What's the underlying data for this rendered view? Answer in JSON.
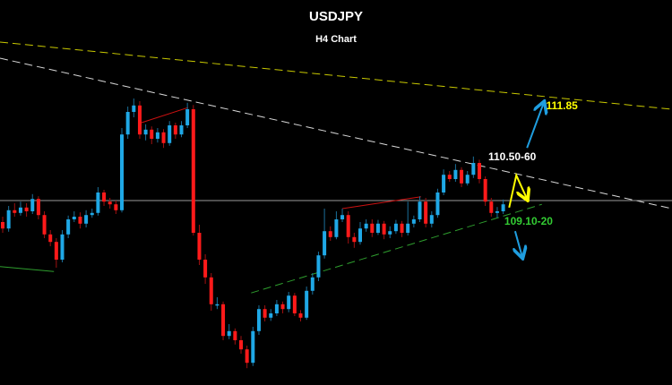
{
  "chart_data": {
    "type": "candlestick",
    "title": "USDJPY",
    "subtitle": "H4 Chart",
    "grid": false,
    "colors": {
      "background": "#000000",
      "bull": "#1fa8e6",
      "bear": "#ff1a1a",
      "resistance_upper": "#c8c800",
      "resistance": "#d8d8d8",
      "support": "#2e9e2e",
      "level": "#9a9a9a",
      "pattern": "#cc1111",
      "arrow_up": "#1f9ee0",
      "arrow_zigzag": "#ffff00",
      "arrow_down": "#1f9ee0"
    },
    "candles": [
      [
        109.6,
        109.7,
        109.4,
        109.48
      ],
      [
        109.48,
        109.9,
        109.42,
        109.82
      ],
      [
        109.82,
        109.95,
        109.7,
        109.77
      ],
      [
        109.77,
        109.98,
        109.72,
        109.87
      ],
      [
        109.87,
        109.95,
        109.7,
        109.8
      ],
      [
        109.8,
        110.12,
        109.75,
        110.03
      ],
      [
        110.03,
        110.08,
        109.65,
        109.73
      ],
      [
        109.73,
        109.8,
        109.3,
        109.37
      ],
      [
        109.37,
        109.45,
        109.15,
        109.23
      ],
      [
        109.23,
        109.3,
        108.75,
        108.9
      ],
      [
        108.9,
        109.45,
        108.85,
        109.37
      ],
      [
        109.37,
        109.72,
        109.3,
        109.65
      ],
      [
        109.65,
        109.8,
        109.6,
        109.7
      ],
      [
        109.7,
        109.78,
        109.48,
        109.57
      ],
      [
        109.57,
        109.82,
        109.5,
        109.73
      ],
      [
        109.73,
        109.85,
        109.68,
        109.77
      ],
      [
        109.77,
        110.25,
        109.72,
        110.15
      ],
      [
        110.15,
        110.2,
        109.9,
        109.98
      ],
      [
        109.98,
        110.05,
        109.85,
        109.93
      ],
      [
        109.93,
        110.0,
        109.75,
        109.82
      ],
      [
        109.82,
        111.35,
        109.78,
        111.23
      ],
      [
        111.23,
        111.75,
        111.15,
        111.65
      ],
      [
        111.65,
        111.9,
        111.55,
        111.77
      ],
      [
        111.77,
        111.85,
        111.15,
        111.23
      ],
      [
        111.23,
        111.42,
        111.12,
        111.32
      ],
      [
        111.32,
        111.38,
        111.05,
        111.15
      ],
      [
        111.15,
        111.35,
        111.08,
        111.27
      ],
      [
        111.27,
        111.33,
        110.98,
        111.07
      ],
      [
        111.07,
        111.48,
        111.02,
        111.4
      ],
      [
        111.4,
        111.45,
        111.15,
        111.23
      ],
      [
        111.23,
        111.48,
        111.18,
        111.4
      ],
      [
        111.4,
        111.82,
        111.35,
        111.7
      ],
      [
        111.7,
        111.78,
        109.35,
        109.4
      ],
      [
        109.4,
        109.55,
        108.8,
        108.9
      ],
      [
        108.9,
        109.0,
        108.45,
        108.57
      ],
      [
        108.57,
        108.65,
        107.95,
        108.07
      ],
      [
        108.07,
        108.2,
        107.98,
        108.07
      ],
      [
        108.07,
        108.12,
        107.4,
        107.48
      ],
      [
        107.48,
        107.7,
        107.42,
        107.57
      ],
      [
        107.57,
        107.62,
        107.32,
        107.4
      ],
      [
        107.4,
        107.48,
        107.15,
        107.23
      ],
      [
        107.23,
        107.3,
        106.88,
        106.98
      ],
      [
        106.98,
        107.65,
        106.92,
        107.57
      ],
      [
        107.57,
        108.05,
        107.5,
        107.98
      ],
      [
        107.98,
        108.05,
        107.75,
        107.82
      ],
      [
        107.82,
        107.98,
        107.76,
        107.9
      ],
      [
        107.9,
        108.15,
        107.85,
        108.07
      ],
      [
        108.07,
        108.12,
        107.9,
        107.98
      ],
      [
        107.98,
        108.3,
        107.92,
        108.23
      ],
      [
        108.23,
        108.28,
        107.85,
        107.9
      ],
      [
        107.9,
        107.96,
        107.75,
        107.82
      ],
      [
        107.82,
        108.4,
        107.78,
        108.32
      ],
      [
        108.32,
        108.65,
        108.25,
        108.57
      ],
      [
        108.57,
        109.05,
        108.5,
        108.98
      ],
      [
        108.98,
        109.85,
        108.92,
        109.43
      ],
      [
        109.43,
        109.52,
        109.25,
        109.32
      ],
      [
        109.32,
        109.8,
        109.28,
        109.65
      ],
      [
        109.65,
        109.85,
        109.6,
        109.73
      ],
      [
        109.73,
        109.8,
        109.2,
        109.32
      ],
      [
        109.32,
        109.4,
        109.12,
        109.23
      ],
      [
        109.23,
        109.6,
        109.18,
        109.48
      ],
      [
        109.48,
        109.65,
        109.42,
        109.57
      ],
      [
        109.57,
        109.65,
        109.32,
        109.4
      ],
      [
        109.4,
        109.64,
        109.36,
        109.57
      ],
      [
        109.57,
        109.62,
        109.28,
        109.37
      ],
      [
        109.37,
        109.52,
        109.3,
        109.43
      ],
      [
        109.43,
        109.64,
        109.38,
        109.57
      ],
      [
        109.57,
        109.62,
        109.32,
        109.4
      ],
      [
        109.4,
        109.98,
        109.35,
        109.57
      ],
      [
        109.57,
        109.72,
        109.5,
        109.65
      ],
      [
        109.65,
        110.08,
        109.6,
        109.98
      ],
      [
        109.98,
        110.05,
        109.5,
        109.57
      ],
      [
        109.57,
        109.8,
        109.5,
        109.73
      ],
      [
        109.73,
        110.22,
        109.68,
        110.15
      ],
      [
        110.15,
        110.58,
        110.1,
        110.48
      ],
      [
        110.48,
        110.55,
        110.35,
        110.4
      ],
      [
        110.4,
        110.68,
        110.35,
        110.57
      ],
      [
        110.57,
        110.62,
        110.25,
        110.32
      ],
      [
        110.32,
        110.55,
        110.28,
        110.48
      ],
      [
        110.48,
        110.82,
        110.42,
        110.7
      ],
      [
        110.7,
        110.76,
        110.32,
        110.4
      ],
      [
        110.4,
        110.45,
        109.9,
        109.98
      ],
      [
        109.98,
        110.05,
        109.7,
        109.77
      ],
      [
        109.77,
        109.88,
        109.68,
        109.8
      ],
      [
        109.8,
        110.02,
        109.75,
        109.93
      ]
    ],
    "lines": [
      {
        "kind": "resistance_upper",
        "style": "dashed",
        "from": [
          -0.45,
          112.95
        ],
        "to": [
          112.3,
          111.7
        ]
      },
      {
        "kind": "resistance",
        "style": "dashed",
        "from": [
          -0.45,
          112.65
        ],
        "to": [
          112.3,
          109.85
        ]
      },
      {
        "kind": "level",
        "style": "solid",
        "price": 110.0
      },
      {
        "kind": "support",
        "style": "solid",
        "from": [
          -0.45,
          108.77
        ],
        "to": [
          8.6,
          108.68
        ]
      },
      {
        "kind": "support",
        "style": "dashed",
        "from": [
          41.7,
          108.28
        ],
        "to": [
          90.5,
          109.93
        ]
      },
      {
        "kind": "pattern",
        "style": "solid",
        "from": [
          23.3,
          111.45
        ],
        "to": [
          31.1,
          111.73
        ]
      },
      {
        "kind": "pattern",
        "style": "solid",
        "from": [
          57.0,
          109.85
        ],
        "to": [
          70.2,
          110.07
        ]
      }
    ],
    "arrows": [
      {
        "kind": "arrow_up",
        "points": [
          [
            88.0,
            110.98
          ],
          [
            90.8,
            111.82
          ]
        ]
      },
      {
        "kind": "arrow_zigzag",
        "points": [
          [
            85.0,
            109.87
          ],
          [
            86.2,
            110.47
          ],
          [
            88.0,
            110.03
          ]
        ]
      },
      {
        "kind": "arrow_down",
        "points": [
          [
            86.0,
            109.43
          ],
          [
            87.2,
            108.95
          ]
        ]
      }
    ],
    "annotations": [
      {
        "text": "111.85",
        "kind": "target_up",
        "at": [
          91.2,
          111.7
        ]
      },
      {
        "text": "110.50-60",
        "kind": "resistance_zone",
        "at": [
          81.5,
          110.75
        ]
      },
      {
        "text": "109.10-20",
        "kind": "support_zone",
        "at": [
          84.2,
          109.55
        ]
      }
    ]
  }
}
